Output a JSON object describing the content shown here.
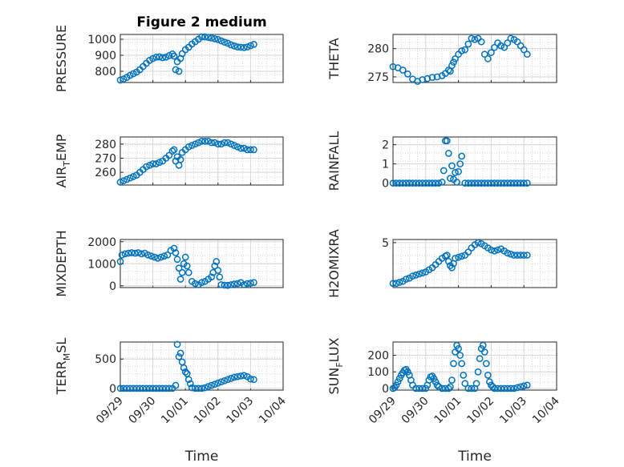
{
  "chart_data": [
    {
      "id": "pressure",
      "type": "scatter",
      "title": "Figure 2 medium",
      "ylabel": "PRESSURE",
      "ylim": [
        730,
        1030
      ],
      "yticks": [
        800,
        900,
        1000
      ],
      "x": [
        0.0,
        0.1,
        0.2,
        0.3,
        0.4,
        0.5,
        0.6,
        0.7,
        0.8,
        0.9,
        1.0,
        1.1,
        1.2,
        1.3,
        1.4,
        1.5,
        1.6,
        1.65,
        1.7,
        1.75,
        1.8,
        1.85,
        1.9,
        2.0,
        2.1,
        2.2,
        2.3,
        2.4,
        2.5,
        2.6,
        2.7,
        2.8,
        2.9,
        3.0,
        3.1,
        3.2,
        3.3,
        3.4,
        3.5,
        3.6,
        3.7,
        3.8,
        3.9,
        4.0,
        4.1
      ],
      "y": [
        745,
        752,
        762,
        775,
        785,
        795,
        810,
        830,
        850,
        868,
        880,
        888,
        890,
        885,
        888,
        898,
        908,
        895,
        810,
        860,
        800,
        880,
        910,
        935,
        950,
        970,
        985,
        1000,
        1015,
        1015,
        1012,
        1008,
        1003,
        998,
        990,
        982,
        975,
        965,
        958,
        952,
        950,
        948,
        952,
        960,
        968
      ]
    },
    {
      "id": "theta",
      "type": "scatter",
      "ylabel": "THETA",
      "ylim": [
        274,
        282.5
      ],
      "yticks": [
        275,
        280
      ],
      "x": [
        0.0,
        0.15,
        0.3,
        0.45,
        0.6,
        0.75,
        0.9,
        1.05,
        1.2,
        1.35,
        1.5,
        1.6,
        1.7,
        1.75,
        1.8,
        1.85,
        1.9,
        2.0,
        2.1,
        2.2,
        2.3,
        2.4,
        2.5,
        2.6,
        2.7,
        2.8,
        2.9,
        3.0,
        3.1,
        3.2,
        3.3,
        3.4,
        3.5,
        3.6,
        3.7,
        3.8,
        3.9,
        4.0,
        4.1
      ],
      "y": [
        276.8,
        276.6,
        276.2,
        275.5,
        274.6,
        274.2,
        274.5,
        274.7,
        274.9,
        275.0,
        275.2,
        275.6,
        276.2,
        276.0,
        277.0,
        277.6,
        278.2,
        279.0,
        279.6,
        279.8,
        280.8,
        281.8,
        281.6,
        281.8,
        281.2,
        279.0,
        278.2,
        279.3,
        280.2,
        281.0,
        280.5,
        280.2,
        281.0,
        281.8,
        281.6,
        281.2,
        280.5,
        279.8,
        279.0
      ]
    },
    {
      "id": "airtemp",
      "type": "scatter",
      "ylabel": "AIR_TEMP",
      "ylim": [
        251,
        285
      ],
      "yticks": [
        260,
        270,
        280
      ],
      "x": [
        0.0,
        0.1,
        0.2,
        0.3,
        0.4,
        0.5,
        0.6,
        0.7,
        0.8,
        0.9,
        1.0,
        1.1,
        1.2,
        1.3,
        1.4,
        1.5,
        1.6,
        1.65,
        1.7,
        1.75,
        1.8,
        1.85,
        1.9,
        2.0,
        2.1,
        2.2,
        2.3,
        2.4,
        2.5,
        2.6,
        2.7,
        2.8,
        2.9,
        3.0,
        3.1,
        3.2,
        3.3,
        3.4,
        3.5,
        3.6,
        3.7,
        3.8,
        3.9,
        4.0,
        4.1
      ],
      "y": [
        253,
        254,
        255,
        256,
        257,
        258,
        260,
        262,
        264,
        265,
        266,
        266,
        267,
        268,
        270,
        272,
        275,
        276,
        268,
        271,
        265,
        269,
        274,
        276,
        278,
        279,
        280,
        281,
        282,
        282,
        282,
        281,
        281,
        280,
        280,
        281,
        281,
        280,
        279,
        278,
        277,
        277,
        276,
        276,
        276
      ]
    },
    {
      "id": "rainfall",
      "type": "scatter",
      "ylabel": "RAINFALL",
      "ylim": [
        -0.1,
        2.4
      ],
      "yticks": [
        0,
        1,
        2
      ],
      "x": [
        0.0,
        0.1,
        0.2,
        0.3,
        0.4,
        0.5,
        0.6,
        0.7,
        0.8,
        0.9,
        1.0,
        1.1,
        1.2,
        1.3,
        1.4,
        1.5,
        1.55,
        1.6,
        1.65,
        1.7,
        1.75,
        1.8,
        1.85,
        1.9,
        1.95,
        2.0,
        2.05,
        2.1,
        2.2,
        2.3,
        2.4,
        2.5,
        2.6,
        2.7,
        2.8,
        2.9,
        3.0,
        3.1,
        3.2,
        3.3,
        3.4,
        3.5,
        3.6,
        3.7,
        3.8,
        3.9,
        4.0,
        4.1
      ],
      "y": [
        0,
        0,
        0,
        0,
        0,
        0,
        0,
        0,
        0,
        0,
        0,
        0,
        0,
        0,
        0,
        0.05,
        0.65,
        2.2,
        2.2,
        1.55,
        0.25,
        0.9,
        0.2,
        0.55,
        0.05,
        0.6,
        1.0,
        1.4,
        0,
        0,
        0,
        0,
        0,
        0,
        0,
        0,
        0,
        0,
        0,
        0,
        0,
        0,
        0,
        0,
        0,
        0,
        0,
        0
      ]
    },
    {
      "id": "mixdepth",
      "type": "scatter",
      "ylabel": "MIXDEPTH",
      "ylim": [
        -80,
        2100
      ],
      "yticks": [
        0,
        1000,
        2000
      ],
      "x": [
        0.0,
        0.05,
        0.15,
        0.25,
        0.35,
        0.45,
        0.55,
        0.65,
        0.75,
        0.85,
        0.95,
        1.05,
        1.15,
        1.25,
        1.35,
        1.45,
        1.55,
        1.65,
        1.7,
        1.75,
        1.8,
        1.85,
        1.9,
        1.95,
        2.0,
        2.05,
        2.1,
        2.2,
        2.3,
        2.4,
        2.5,
        2.6,
        2.7,
        2.8,
        2.85,
        2.9,
        2.95,
        3.0,
        3.05,
        3.1,
        3.2,
        3.3,
        3.4,
        3.5,
        3.6,
        3.7,
        3.8,
        3.9,
        4.0,
        4.1
      ],
      "y": [
        1100,
        1400,
        1450,
        1480,
        1500,
        1480,
        1500,
        1450,
        1480,
        1400,
        1350,
        1300,
        1250,
        1300,
        1350,
        1400,
        1600,
        1700,
        1500,
        1200,
        800,
        300,
        600,
        1000,
        1300,
        900,
        600,
        200,
        100,
        50,
        150,
        200,
        300,
        400,
        600,
        900,
        1100,
        700,
        400,
        50,
        30,
        20,
        50,
        80,
        100,
        150,
        50,
        100,
        120,
        150
      ]
    },
    {
      "id": "h2omixra",
      "type": "scatter",
      "ylabel": "H2OMIXRA",
      "ylim": [
        0.7,
        5.3
      ],
      "yticks": [
        5
      ],
      "x": [
        0.0,
        0.1,
        0.2,
        0.3,
        0.4,
        0.5,
        0.6,
        0.7,
        0.8,
        0.9,
        1.0,
        1.1,
        1.2,
        1.3,
        1.4,
        1.5,
        1.6,
        1.65,
        1.7,
        1.75,
        1.8,
        1.85,
        1.9,
        2.0,
        2.1,
        2.2,
        2.3,
        2.4,
        2.5,
        2.6,
        2.7,
        2.8,
        2.9,
        3.0,
        3.1,
        3.2,
        3.3,
        3.4,
        3.5,
        3.6,
        3.7,
        3.8,
        3.9,
        4.0,
        4.1
      ],
      "y": [
        1.1,
        1.1,
        1.2,
        1.3,
        1.5,
        1.6,
        1.8,
        1.9,
        2.0,
        2.1,
        2.2,
        2.4,
        2.6,
        2.9,
        3.2,
        3.5,
        3.7,
        3.8,
        3.2,
        2.8,
        2.6,
        3.0,
        3.5,
        3.6,
        3.7,
        3.8,
        4.1,
        4.5,
        4.8,
        5.0,
        4.9,
        4.7,
        4.5,
        4.3,
        4.2,
        4.3,
        4.4,
        4.2,
        4.0,
        3.9,
        3.8,
        3.8,
        3.8,
        3.8,
        3.8
      ]
    },
    {
      "id": "terrmsl",
      "type": "scatter",
      "ylabel": "TERR_MSL",
      "ylim": [
        -30,
        790
      ],
      "yticks": [
        0,
        500
      ],
      "x": [
        0.0,
        0.1,
        0.2,
        0.3,
        0.4,
        0.5,
        0.6,
        0.7,
        0.8,
        0.9,
        1.0,
        1.1,
        1.2,
        1.3,
        1.4,
        1.5,
        1.6,
        1.7,
        1.75,
        1.8,
        1.85,
        1.9,
        1.95,
        2.0,
        2.05,
        2.1,
        2.15,
        2.2,
        2.3,
        2.4,
        2.5,
        2.6,
        2.7,
        2.8,
        2.9,
        3.0,
        3.1,
        3.2,
        3.3,
        3.4,
        3.5,
        3.6,
        3.7,
        3.8,
        3.9,
        4.0,
        4.1
      ],
      "y": [
        0,
        0,
        0,
        0,
        0,
        0,
        0,
        0,
        0,
        0,
        0,
        0,
        0,
        0,
        0,
        0,
        0,
        50,
        750,
        540,
        600,
        450,
        350,
        280,
        250,
        150,
        80,
        10,
        0,
        0,
        0,
        10,
        30,
        50,
        70,
        90,
        110,
        130,
        150,
        170,
        190,
        200,
        210,
        220,
        200,
        160,
        150
      ]
    },
    {
      "id": "sunflux",
      "type": "scatter",
      "ylabel": "SUN_FLUX",
      "ylim": [
        -10,
        280
      ],
      "yticks": [
        0,
        100,
        200
      ],
      "x": [
        0.0,
        0.05,
        0.1,
        0.15,
        0.2,
        0.25,
        0.3,
        0.35,
        0.4,
        0.45,
        0.5,
        0.55,
        0.6,
        0.7,
        0.8,
        0.9,
        1.0,
        1.05,
        1.1,
        1.15,
        1.2,
        1.25,
        1.3,
        1.35,
        1.4,
        1.5,
        1.6,
        1.7,
        1.75,
        1.8,
        1.85,
        1.9,
        1.95,
        2.0,
        2.05,
        2.1,
        2.15,
        2.2,
        2.3,
        2.4,
        2.5,
        2.55,
        2.6,
        2.65,
        2.7,
        2.75,
        2.8,
        2.85,
        2.9,
        2.95,
        3.0,
        3.05,
        3.1,
        3.2,
        3.3,
        3.4,
        3.5,
        3.6,
        3.7,
        3.8,
        3.9,
        4.0,
        4.1
      ],
      "y": [
        0,
        5,
        20,
        40,
        60,
        80,
        95,
        110,
        115,
        100,
        80,
        50,
        20,
        0,
        0,
        0,
        0,
        20,
        50,
        70,
        75,
        60,
        40,
        20,
        10,
        0,
        0,
        0,
        10,
        50,
        150,
        220,
        260,
        240,
        200,
        150,
        80,
        30,
        0,
        0,
        0,
        30,
        100,
        180,
        240,
        260,
        220,
        150,
        80,
        40,
        20,
        10,
        0,
        0,
        0,
        0,
        0,
        0,
        0,
        5,
        10,
        15,
        20
      ]
    }
  ],
  "xaxis": {
    "label": "Time",
    "tick_labels": [
      "09/29",
      "09/30",
      "10/01",
      "10/02",
      "10/03",
      "10/04"
    ]
  },
  "colors": {
    "marker": "#0072BD",
    "axis": "#262626",
    "grid": "#d6d6d6"
  }
}
